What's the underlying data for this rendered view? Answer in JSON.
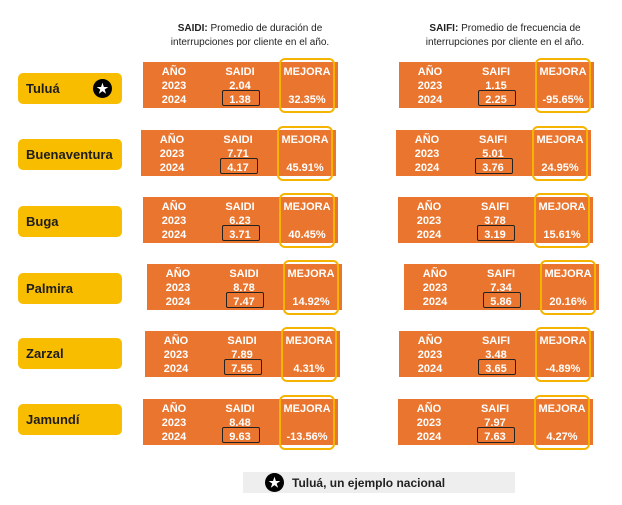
{
  "headers": {
    "saidi": {
      "bold": "SAIDI:",
      "text": " Promedio de duración de interrupciones por cliente en el año."
    },
    "saifi": {
      "bold": "SAIFI:",
      "text": " Promedio de frecuencia de interrupciones por cliente en el año."
    }
  },
  "column_labels": {
    "year": "AÑO",
    "saidi": "SAIDI",
    "saifi": "SAIFI",
    "improvement": "MEJORA"
  },
  "years": {
    "y1": "2023",
    "y2": "2024"
  },
  "rows": [
    {
      "city": "Tuluá",
      "saidi_2023": "2.04",
      "saidi_2024": "1.38",
      "saidi_mejora": "32.35%",
      "saifi_2023": "1.15",
      "saifi_2024": "2.25",
      "saifi_mejora": "-95.65%"
    },
    {
      "city": "Buenaventura",
      "saidi_2023": "7.71",
      "saidi_2024": "4.17",
      "saidi_mejora": "45.91%",
      "saifi_2023": "5.01",
      "saifi_2024": "3.76",
      "saifi_mejora": "24.95%"
    },
    {
      "city": "Buga",
      "saidi_2023": "6.23",
      "saidi_2024": "3.71",
      "saidi_mejora": "40.45%",
      "saifi_2023": "3.78",
      "saifi_2024": "3.19",
      "saifi_mejora": "15.61%"
    },
    {
      "city": "Palmira",
      "saidi_2023": "8.78",
      "saidi_2024": "7.47",
      "saidi_mejora": "14.92%",
      "saifi_2023": "7.34",
      "saifi_2024": "5.86",
      "saifi_mejora": "20.16%"
    },
    {
      "city": "Zarzal",
      "saidi_2023": "7.89",
      "saidi_2024": "7.55",
      "saidi_mejora": "4.31%",
      "saifi_2023": "3.48",
      "saifi_2024": "3.65",
      "saifi_mejora": "-4.89%"
    },
    {
      "city": "Jamundí",
      "saidi_2023": "8.48",
      "saidi_2024": "9.63",
      "saidi_mejora": "-13.56%",
      "saifi_2023": "7.97",
      "saifi_2024": "7.63",
      "saifi_mejora": "4.27%"
    }
  ],
  "footer": {
    "text": "Tuluá, un ejemplo nacional",
    "icon": "star-icon"
  },
  "colors": {
    "block": "#e9752f",
    "city_label": "#f9bd00",
    "mejora_frame": "#f5b400"
  }
}
